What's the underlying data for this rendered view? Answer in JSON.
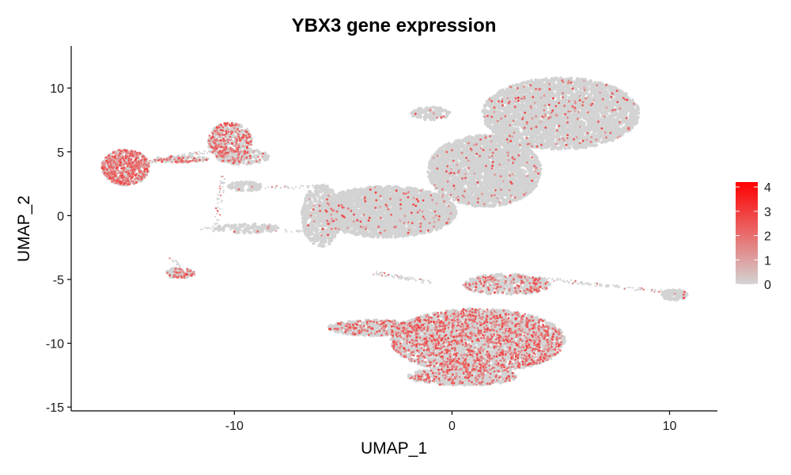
{
  "chart_data": {
    "type": "scatter",
    "title": "YBX3 gene expression",
    "xlabel": "UMAP_1",
    "ylabel": "UMAP_2",
    "xlim": [
      -17.5,
      12.2
    ],
    "ylim": [
      -15.3,
      13.3
    ],
    "xticks": [
      -10,
      0,
      10
    ],
    "yticks": [
      10,
      5,
      0,
      -5,
      -10,
      -15
    ],
    "xtick_labels": [
      "-10",
      "0",
      "10"
    ],
    "ytick_labels": [
      "10",
      "5",
      "0",
      "-5",
      "-10",
      "-15"
    ],
    "grid": false,
    "point_color_low": "#d3d3d3",
    "point_color_high": "#ff0000",
    "legend": {
      "position": "right",
      "type": "colorbar",
      "min": 0,
      "max": 4.2,
      "ticks": [
        0,
        1,
        2,
        3,
        4
      ],
      "tick_labels": [
        "0",
        "1",
        "2",
        "3",
        "4"
      ]
    },
    "clusters": [
      {
        "cx": -15.0,
        "cy": 3.8,
        "rx": 1.1,
        "ry": 1.4,
        "n": 700,
        "expr_prob": 0.75
      },
      {
        "cx": -10.2,
        "cy": 5.8,
        "rx": 1.0,
        "ry": 1.5,
        "n": 500,
        "expr_prob": 0.45
      },
      {
        "cx": -9.6,
        "cy": 4.6,
        "rx": 1.2,
        "ry": 0.6,
        "n": 160,
        "expr_prob": 0.2
      },
      {
        "cx": -12.5,
        "cy": 4.4,
        "rx": 1.3,
        "ry": 0.25,
        "n": 90,
        "expr_prob": 0.5
      },
      {
        "cx": -9.5,
        "cy": 2.3,
        "rx": 0.8,
        "ry": 0.35,
        "n": 90,
        "expr_prob": 0.05
      },
      {
        "cx": -9.4,
        "cy": -1.0,
        "rx": 1.5,
        "ry": 0.35,
        "n": 90,
        "expr_prob": 0.05
      },
      {
        "cx": -12.5,
        "cy": -4.5,
        "rx": 0.7,
        "ry": 0.4,
        "n": 110,
        "expr_prob": 0.3
      },
      {
        "cx": -3.0,
        "cy": 0.3,
        "rx": 3.2,
        "ry": 2.0,
        "n": 2600,
        "expr_prob": 0.04
      },
      {
        "cx": -6.0,
        "cy": 0.0,
        "rx": 0.9,
        "ry": 2.4,
        "n": 500,
        "expr_prob": 0.04
      },
      {
        "cx": 1.5,
        "cy": 3.5,
        "rx": 2.6,
        "ry": 2.8,
        "n": 2600,
        "expr_prob": 0.04
      },
      {
        "cx": 5.0,
        "cy": 8.0,
        "rx": 3.6,
        "ry": 2.8,
        "n": 3200,
        "expr_prob": 0.05
      },
      {
        "cx": -1.0,
        "cy": 8.0,
        "rx": 0.9,
        "ry": 0.5,
        "n": 100,
        "expr_prob": 0.05
      },
      {
        "cx": 1.2,
        "cy": -9.8,
        "rx": 4.0,
        "ry": 2.5,
        "n": 3800,
        "expr_prob": 0.35
      },
      {
        "cx": -3.5,
        "cy": -8.8,
        "rx": 2.2,
        "ry": 0.6,
        "n": 600,
        "expr_prob": 0.25
      },
      {
        "cx": 0.5,
        "cy": -12.6,
        "rx": 2.5,
        "ry": 0.7,
        "n": 600,
        "expr_prob": 0.25
      },
      {
        "cx": 2.5,
        "cy": -5.4,
        "rx": 2.0,
        "ry": 0.8,
        "n": 500,
        "expr_prob": 0.3
      },
      {
        "cx": 10.2,
        "cy": -6.2,
        "rx": 0.6,
        "ry": 0.4,
        "n": 110,
        "expr_prob": 0.05
      }
    ],
    "bridges": [
      {
        "x1": -13.9,
        "y1": 4.2,
        "x2": -10.8,
        "y2": 5.2,
        "n": 80
      },
      {
        "x1": -10.5,
        "y1": 3.2,
        "x2": -10.9,
        "y2": -1.4,
        "n": 50
      },
      {
        "x1": -11.5,
        "y1": -1.0,
        "x2": -6.5,
        "y2": -1.2,
        "n": 60
      },
      {
        "x1": -8.5,
        "y1": 2.2,
        "x2": -6.0,
        "y2": 2.3,
        "n": 40
      },
      {
        "x1": 3.5,
        "y1": -4.8,
        "x2": 9.8,
        "y2": -6.0,
        "n": 110
      },
      {
        "x1": -3.5,
        "y1": -4.5,
        "x2": -1.0,
        "y2": -5.2,
        "n": 70
      },
      {
        "x1": -12.9,
        "y1": -3.2,
        "x2": -12.4,
        "y2": -4.6,
        "n": 25
      }
    ]
  }
}
